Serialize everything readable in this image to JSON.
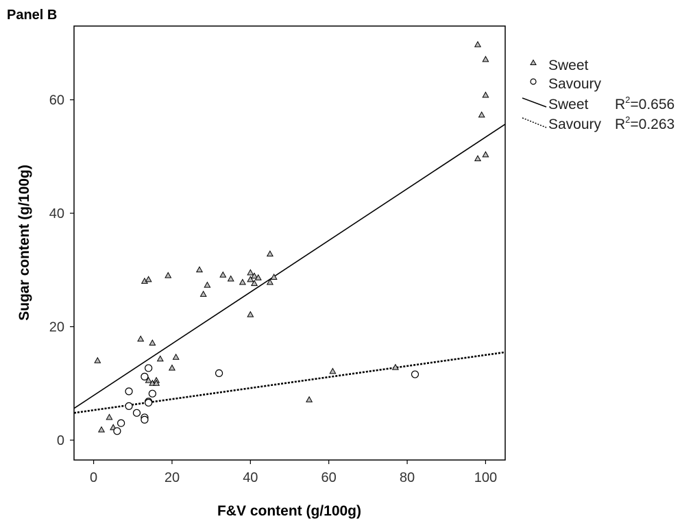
{
  "panel_label": "Panel B",
  "chart_data": {
    "type": "scatter",
    "xlabel": "F&V content (g/100g)",
    "ylabel": "Sugar content (g/100g)",
    "xlim": [
      -5,
      105
    ],
    "ylim": [
      -3.5,
      73
    ],
    "xticks": [
      0,
      20,
      40,
      60,
      80,
      100
    ],
    "yticks": [
      0,
      20,
      40,
      60
    ],
    "grid": false,
    "legend_position": "right",
    "series": [
      {
        "name": "Sweet",
        "marker": "triangle",
        "points": [
          [
            1,
            14
          ],
          [
            2,
            1.8
          ],
          [
            4,
            4
          ],
          [
            5,
            2.2
          ],
          [
            12,
            17.8
          ],
          [
            13,
            28
          ],
          [
            14,
            28.3
          ],
          [
            14,
            10.5
          ],
          [
            15,
            17.1
          ],
          [
            15,
            10
          ],
          [
            16,
            10.5
          ],
          [
            16,
            10
          ],
          [
            17,
            14.3
          ],
          [
            19,
            29
          ],
          [
            20,
            12.7
          ],
          [
            21,
            14.6
          ],
          [
            27,
            30
          ],
          [
            28,
            25.7
          ],
          [
            29,
            27.3
          ],
          [
            33,
            29.1
          ],
          [
            35,
            28.4
          ],
          [
            38,
            27.8
          ],
          [
            40,
            29.5
          ],
          [
            40,
            28.3
          ],
          [
            40,
            22.1
          ],
          [
            41,
            28.9
          ],
          [
            41,
            27.6
          ],
          [
            42,
            28.6
          ],
          [
            45,
            32.8
          ],
          [
            45,
            27.8
          ],
          [
            46,
            28.7
          ],
          [
            55,
            7.1
          ],
          [
            61,
            12.1
          ],
          [
            77,
            12.8
          ],
          [
            98,
            69.7
          ],
          [
            98,
            49.6
          ],
          [
            99,
            57.3
          ],
          [
            100,
            67.1
          ],
          [
            100,
            60.8
          ],
          [
            100,
            50.3
          ]
        ]
      },
      {
        "name": "Savoury",
        "marker": "circle",
        "points": [
          [
            6,
            1.6
          ],
          [
            7,
            3
          ],
          [
            9,
            8.6
          ],
          [
            9,
            6
          ],
          [
            11,
            4.8
          ],
          [
            13,
            11.2
          ],
          [
            13,
            4
          ],
          [
            13,
            3.6
          ],
          [
            14,
            12.7
          ],
          [
            14,
            6.8
          ],
          [
            14,
            6.6
          ],
          [
            15,
            8.2
          ],
          [
            32,
            11.8
          ],
          [
            82,
            11.6
          ]
        ]
      }
    ],
    "fit_lines": [
      {
        "name": "Sweet",
        "style": "solid",
        "r2_label": "R²=0.656",
        "x": [
          -5,
          105
        ],
        "y": [
          5.6,
          55.7
        ]
      },
      {
        "name": "Savoury",
        "style": "dotted",
        "r2_label": "R²=0.263",
        "x": [
          -5,
          105
        ],
        "y": [
          4.8,
          15.5
        ]
      }
    ]
  },
  "legend": {
    "items": [
      {
        "label": "Sweet",
        "kind": "triangle"
      },
      {
        "label": "Savoury",
        "kind": "circle"
      },
      {
        "label": "Sweet",
        "kind": "solid-line",
        "r2_prefix": "R",
        "r2_sup": "2",
        "r2_value": "=0.656"
      },
      {
        "label": "Savoury",
        "kind": "dotted-line",
        "r2_prefix": "R",
        "r2_sup": "2",
        "r2_value": "=0.263"
      }
    ]
  }
}
